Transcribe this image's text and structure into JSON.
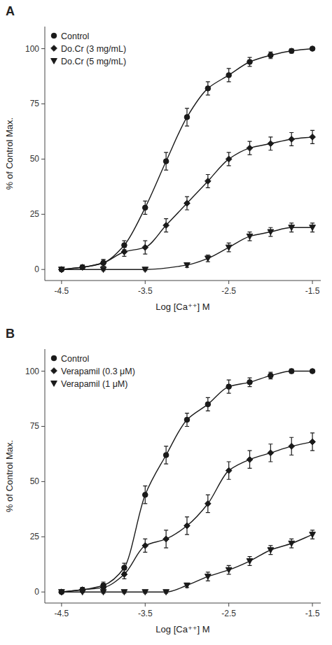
{
  "chart_data": [
    {
      "type": "line",
      "title": "A",
      "x_label": "Log [Ca⁺⁺] M",
      "y_label": "% of Control Max.",
      "color": "#1a1a1a",
      "legend": "upper left",
      "grid": false,
      "xlim": [
        -4.7,
        -1.4
      ],
      "ylim": [
        -5,
        110
      ],
      "xticks": [
        -4.5,
        -3.5,
        -2.5,
        -1.5
      ],
      "yticks": [
        0,
        25,
        50,
        75,
        100
      ],
      "series": [
        {
          "name": "Control",
          "marker": "circle",
          "x": [
            -4.5,
            -4.25,
            -4.0,
            -3.75,
            -3.5,
            -3.25,
            -3.0,
            -2.75,
            -2.5,
            -2.25,
            -2.0,
            -1.75,
            -1.5
          ],
          "values": [
            0,
            1,
            3,
            11,
            28,
            49,
            69,
            82,
            88,
            94,
            97,
            99,
            100
          ],
          "errors": [
            0.5,
            1,
            1.5,
            2,
            3,
            4,
            4,
            3,
            3,
            2,
            1.5,
            1,
            0.5
          ]
        },
        {
          "name": "Do.Cr (3 mg/mL)",
          "marker": "diamond",
          "x": [
            -4.5,
            -4.25,
            -4.0,
            -3.75,
            -3.5,
            -3.25,
            -3.0,
            -2.75,
            -2.5,
            -2.25,
            -2.0,
            -1.75,
            -1.5
          ],
          "values": [
            0,
            1,
            3,
            8,
            10,
            20,
            30,
            40,
            50,
            55,
            57,
            59,
            60
          ],
          "errors": [
            0.5,
            1,
            1.5,
            2,
            3,
            3,
            3,
            3,
            3,
            3,
            3,
            3,
            3
          ]
        },
        {
          "name": "Do.Cr (5 mg/mL)",
          "marker": "triangle-down",
          "x": [
            -4.5,
            -4.0,
            -3.5,
            -3.0,
            -2.75,
            -2.5,
            -2.25,
            -2.0,
            -1.75,
            -1.5
          ],
          "values": [
            0,
            0,
            0,
            2,
            5,
            10,
            15,
            17,
            19,
            19
          ],
          "errors": [
            0.3,
            0.5,
            0.5,
            1,
            1.5,
            2,
            2,
            2,
            2,
            2
          ]
        }
      ]
    },
    {
      "type": "line",
      "title": "B",
      "x_label": "Log [Ca⁺⁺] M",
      "y_label": "% of Control Max.",
      "color": "#1a1a1a",
      "legend": "upper left",
      "grid": false,
      "xlim": [
        -4.7,
        -1.4
      ],
      "ylim": [
        -5,
        110
      ],
      "xticks": [
        -4.5,
        -3.5,
        -2.5,
        -1.5
      ],
      "yticks": [
        0,
        25,
        50,
        75,
        100
      ],
      "series": [
        {
          "name": "Control",
          "marker": "circle",
          "x": [
            -4.5,
            -4.25,
            -4.0,
            -3.75,
            -3.5,
            -3.25,
            -3.0,
            -2.75,
            -2.5,
            -2.25,
            -2.0,
            -1.75,
            -1.5
          ],
          "values": [
            0,
            1,
            3,
            11,
            44,
            62,
            78,
            85,
            93,
            95,
            98,
            100,
            100
          ],
          "errors": [
            0.5,
            1,
            1.5,
            2,
            4,
            4,
            3,
            3,
            3,
            2,
            1.5,
            1,
            0.5
          ]
        },
        {
          "name": "Verapamil (0.3 μM)",
          "marker": "diamond",
          "x": [
            -4.5,
            -4.25,
            -4.0,
            -3.75,
            -3.5,
            -3.25,
            -3.0,
            -2.75,
            -2.5,
            -2.25,
            -2.0,
            -1.75,
            -1.5
          ],
          "values": [
            0,
            1,
            2,
            8,
            21,
            24,
            30,
            40,
            55,
            60,
            63,
            66,
            68
          ],
          "errors": [
            0.5,
            1,
            1.5,
            2,
            3,
            4,
            4,
            4,
            4,
            4,
            4,
            4,
            4
          ]
        },
        {
          "name": "Verapamil (1 μM)",
          "marker": "triangle-down",
          "x": [
            -4.5,
            -4.25,
            -4.0,
            -3.75,
            -3.5,
            -3.25,
            -3.0,
            -2.75,
            -2.5,
            -2.25,
            -2.0,
            -1.75,
            -1.5
          ],
          "values": [
            0,
            0,
            0,
            0,
            0,
            0,
            3,
            7,
            10,
            14,
            19,
            22,
            26
          ],
          "errors": [
            0.3,
            0.3,
            0.5,
            0.5,
            0.5,
            0.5,
            1,
            2,
            2,
            2,
            2,
            2,
            2
          ]
        }
      ]
    }
  ]
}
